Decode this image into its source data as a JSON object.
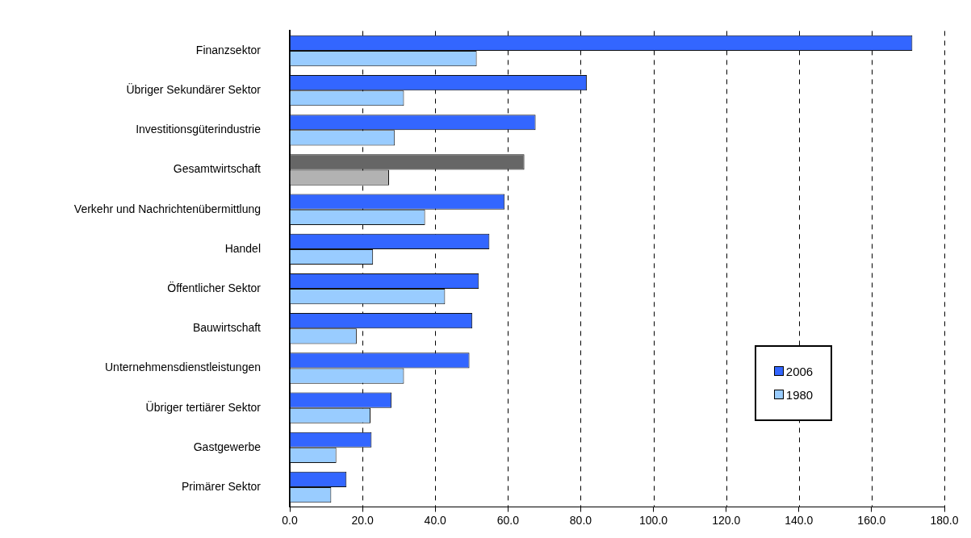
{
  "chart_data": {
    "type": "bar",
    "orientation": "horizontal",
    "categories": [
      "Finanzsektor",
      "Übriger Sekundärer Sektor",
      "Investitionsgüterindustrie",
      "Gesamtwirtschaft",
      "Verkehr und Nachrichtenübermittlung",
      "Handel",
      "Öffentlicher Sektor",
      "Bauwirtschaft",
      "Unternehmensdienstleistungen",
      "Übriger tertiärer Sektor",
      "Gastgewerbe",
      "Primärer Sektor"
    ],
    "series": [
      {
        "name": "2006",
        "color": "#3366ff",
        "colors": [
          "#3366ff",
          "#3366ff",
          "#3366ff",
          "#666666",
          "#3366ff",
          "#3366ff",
          "#3366ff",
          "#3366ff",
          "#3366ff",
          "#3366ff",
          "#3366ff",
          "#3366ff"
        ],
        "values": [
          171.2,
          81.7,
          67.6,
          64.5,
          59.1,
          54.9,
          52.0,
          50.2,
          49.4,
          28.0,
          22.5,
          15.6
        ]
      },
      {
        "name": "1980",
        "color": "#99ccff",
        "colors": [
          "#99ccff",
          "#99ccff",
          "#99ccff",
          "#b2b2b2",
          "#99ccff",
          "#99ccff",
          "#99ccff",
          "#99ccff",
          "#99ccff",
          "#99ccff",
          "#99ccff",
          "#99ccff"
        ],
        "values": [
          51.4,
          31.4,
          28.9,
          27.3,
          37.2,
          22.9,
          42.7,
          18.4,
          31.4,
          22.2,
          12.8,
          11.4
        ]
      }
    ],
    "xlim": [
      0,
      180
    ],
    "xticks": [
      {
        "value": 0,
        "label": "0.0"
      },
      {
        "value": 20,
        "label": "20.0"
      },
      {
        "value": 40,
        "label": "40.0"
      },
      {
        "value": 60,
        "label": "60.0"
      },
      {
        "value": 80,
        "label": "80.0"
      },
      {
        "value": 100,
        "label": "100.0"
      },
      {
        "value": 120,
        "label": "120.0"
      },
      {
        "value": 140,
        "label": "140.0"
      },
      {
        "value": 160,
        "label": "160.0"
      },
      {
        "value": 180,
        "label": "180.0"
      }
    ],
    "grid": "x",
    "legend": "right"
  }
}
